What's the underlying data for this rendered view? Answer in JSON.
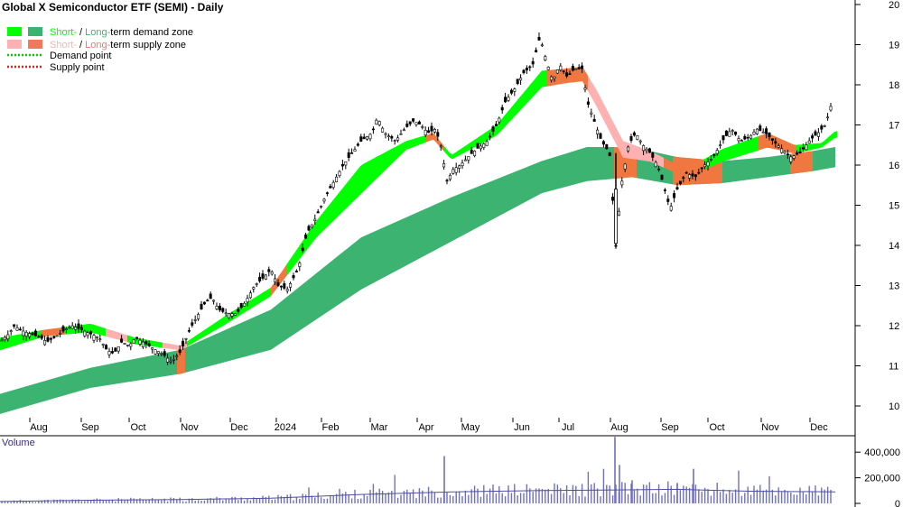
{
  "chart_data": {
    "type": "candlestick",
    "title": "Global X Semiconductor ETF (SEMI) - Daily",
    "legend": [
      {
        "short": "Short-",
        "sep": " / ",
        "long": "Long-",
        "rest": "term demand zone",
        "short_color": "#00ff00",
        "long_color": "#3cb371"
      },
      {
        "short": "Short-",
        "sep": " / ",
        "long": "Long-",
        "rest": "term supply zone",
        "short_color": "#ffb0b0",
        "long_color": "#f07860"
      },
      {
        "label": "Demand point",
        "color": "#00d000"
      },
      {
        "label": "Supply point",
        "color": "#e02020"
      }
    ],
    "x_ticks": [
      "Aug",
      "Sep",
      "Oct",
      "Nov",
      "Dec",
      "2024",
      "Feb",
      "Mar",
      "Apr",
      "May",
      "Jun",
      "Jul",
      "Aug",
      "Sep",
      "Oct",
      "Nov",
      "Dec"
    ],
    "y_ticks": [
      10,
      11,
      12,
      13,
      14,
      15,
      16,
      17,
      18,
      19,
      20
    ],
    "ylim": [
      9.4,
      20
    ],
    "price_path": [
      [
        0,
        11.6
      ],
      [
        10,
        11.8
      ],
      [
        16,
        12.0
      ],
      [
        22,
        11.9
      ],
      [
        33,
        11.8
      ],
      [
        45,
        11.7
      ],
      [
        52,
        11.6
      ],
      [
        60,
        11.7
      ],
      [
        72,
        11.9
      ],
      [
        80,
        12.0
      ],
      [
        90,
        11.9
      ],
      [
        100,
        11.8
      ],
      [
        110,
        11.7
      ],
      [
        118,
        11.4
      ],
      [
        126,
        11.3
      ],
      [
        135,
        11.6
      ],
      [
        143,
        11.5
      ],
      [
        150,
        11.7
      ],
      [
        158,
        11.6
      ],
      [
        165,
        11.5
      ],
      [
        172,
        11.4
      ],
      [
        180,
        11.3
      ],
      [
        190,
        11.1
      ],
      [
        200,
        11.35
      ],
      [
        210,
        11.9
      ],
      [
        220,
        12.3
      ],
      [
        228,
        12.6
      ],
      [
        235,
        12.7
      ],
      [
        242,
        12.4
      ],
      [
        252,
        12.3
      ],
      [
        262,
        12.3
      ],
      [
        272,
        12.6
      ],
      [
        282,
        13.0
      ],
      [
        292,
        13.2
      ],
      [
        300,
        13.4
      ],
      [
        308,
        13.0
      ],
      [
        318,
        12.9
      ],
      [
        330,
        13.4
      ],
      [
        340,
        14.3
      ],
      [
        350,
        14.7
      ],
      [
        360,
        15.2
      ],
      [
        370,
        15.6
      ],
      [
        380,
        16.0
      ],
      [
        390,
        16.3
      ],
      [
        400,
        16.6
      ],
      [
        412,
        16.8
      ],
      [
        418,
        17.2
      ],
      [
        426,
        16.8
      ],
      [
        438,
        16.6
      ],
      [
        448,
        16.9
      ],
      [
        458,
        17.1
      ],
      [
        466,
        17.0
      ],
      [
        474,
        16.8
      ],
      [
        482,
        16.9
      ],
      [
        488,
        16.5
      ],
      [
        495,
        15.6
      ],
      [
        502,
        15.9
      ],
      [
        510,
        16.0
      ],
      [
        518,
        16.2
      ],
      [
        528,
        16.4
      ],
      [
        540,
        16.6
      ],
      [
        550,
        17.0
      ],
      [
        560,
        17.6
      ],
      [
        570,
        17.9
      ],
      [
        580,
        18.3
      ],
      [
        590,
        18.5
      ],
      [
        598,
        19.2
      ],
      [
        605,
        18.6
      ],
      [
        612,
        18.1
      ],
      [
        620,
        18.5
      ],
      [
        628,
        18.2
      ],
      [
        636,
        18.4
      ],
      [
        645,
        18.4
      ],
      [
        650,
        17.6
      ],
      [
        658,
        17.1
      ],
      [
        666,
        16.6
      ],
      [
        675,
        16.3
      ],
      [
        682,
        14.0
      ],
      [
        688,
        15.5
      ],
      [
        696,
        16.5
      ],
      [
        704,
        16.8
      ],
      [
        712,
        16.5
      ],
      [
        720,
        16.3
      ],
      [
        728,
        16.0
      ],
      [
        735,
        15.5
      ],
      [
        742,
        14.9
      ],
      [
        750,
        15.4
      ],
      [
        760,
        15.8
      ],
      [
        770,
        15.7
      ],
      [
        780,
        16.0
      ],
      [
        790,
        16.2
      ],
      [
        800,
        16.6
      ],
      [
        810,
        16.9
      ],
      [
        820,
        16.6
      ],
      [
        830,
        16.7
      ],
      [
        838,
        16.9
      ],
      [
        848,
        16.8
      ],
      [
        856,
        16.6
      ],
      [
        866,
        16.4
      ],
      [
        876,
        16.2
      ],
      [
        886,
        16.3
      ],
      [
        896,
        16.6
      ],
      [
        906,
        16.8
      ],
      [
        914,
        17.0
      ],
      [
        918,
        17.3
      ],
      [
        923,
        17.7
      ]
    ],
    "long_zone": {
      "x": [
        0,
        100,
        200,
        300,
        400,
        500,
        600,
        650,
        700,
        750,
        800,
        850,
        900,
        925
      ],
      "upper": [
        10.3,
        10.95,
        11.4,
        12.4,
        14.2,
        15.2,
        16.1,
        16.45,
        16.45,
        16.2,
        16.1,
        16.2,
        16.35,
        16.45
      ],
      "lower": [
        9.8,
        10.45,
        10.8,
        11.4,
        12.9,
        14.1,
        15.3,
        15.6,
        15.7,
        15.5,
        15.55,
        15.7,
        15.85,
        15.95
      ]
    },
    "short_zone": {
      "x": [
        0,
        50,
        100,
        150,
        200,
        250,
        300,
        350,
        400,
        450,
        480,
        500,
        550,
        600,
        625,
        645,
        660,
        690,
        720,
        760,
        800,
        850,
        880,
        910,
        925
      ],
      "upper": [
        11.7,
        11.9,
        12.05,
        11.7,
        11.5,
        12.25,
        12.95,
        14.6,
        16.0,
        16.6,
        16.8,
        16.25,
        17.0,
        18.35,
        18.4,
        18.45,
        17.9,
        16.6,
        16.35,
        15.9,
        16.4,
        16.8,
        16.5,
        16.55,
        16.85
      ],
      "lower": [
        11.4,
        11.75,
        11.85,
        11.55,
        11.4,
        12.05,
        12.75,
        14.2,
        15.3,
        16.4,
        16.65,
        16.15,
        16.75,
        17.95,
        18.05,
        18.1,
        17.5,
        16.2,
        16.1,
        15.7,
        16.1,
        16.45,
        16.3,
        16.45,
        16.7
      ]
    },
    "volume": {
      "label": "Volume",
      "y_ticks": [
        "0",
        "200,000",
        "400,000"
      ],
      "tick_values": [
        0,
        200000,
        400000
      ],
      "ylim": [
        0,
        500000
      ],
      "spikes": [
        [
          492,
          370000
        ],
        [
          681,
          520000
        ],
        [
          686,
          300000
        ],
        [
          768,
          270000
        ],
        [
          750,
          160000
        ],
        [
          700,
          180000
        ]
      ],
      "moving_average": [
        [
          0,
          15000
        ],
        [
          100,
          25000
        ],
        [
          200,
          30000
        ],
        [
          300,
          40000
        ],
        [
          400,
          70000
        ],
        [
          500,
          90000
        ],
        [
          600,
          100000
        ],
        [
          680,
          105000
        ],
        [
          750,
          110000
        ],
        [
          830,
          95000
        ],
        [
          925,
          90000
        ]
      ]
    }
  }
}
